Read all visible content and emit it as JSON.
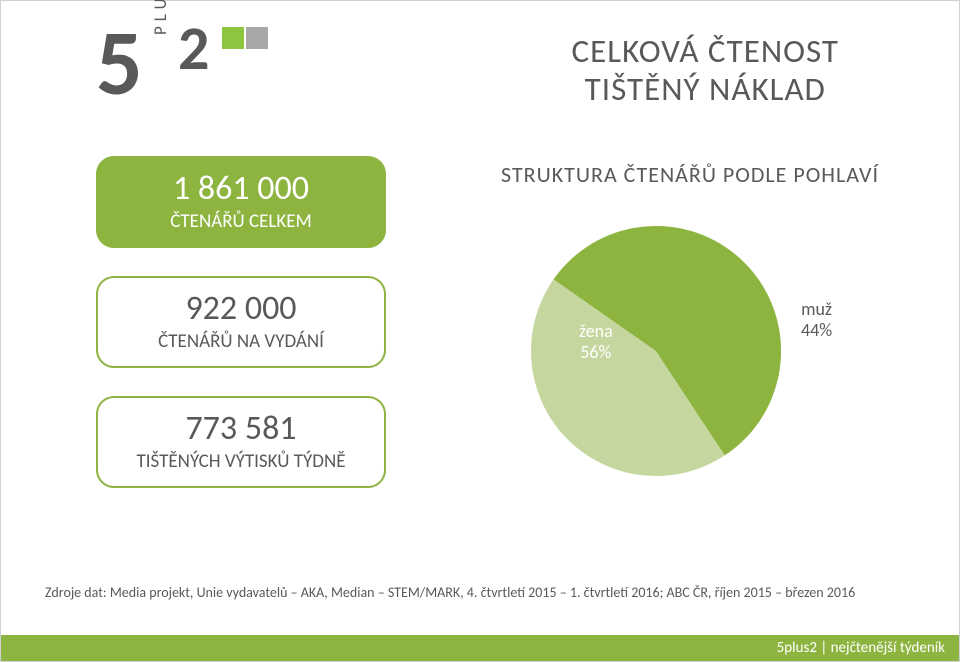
{
  "logo": {
    "big": "5",
    "plus": "PLUS",
    "small": "2",
    "colors": {
      "text": "#595959",
      "square1": "#8cc63f",
      "square2": "#a8a8a8"
    }
  },
  "title": {
    "line1": "CELKOVÁ ČTENOST",
    "line2": "TIŠTĚNÝ NÁKLAD",
    "fontsize": 33,
    "color": "#595959"
  },
  "stats": {
    "pill_border": "#8eb440",
    "pill_fill": "#8eb440",
    "items": [
      {
        "value": "1 861 000",
        "label": "ČTENÁŘŮ CELKEM",
        "filled": true
      },
      {
        "value": "922 000",
        "label": "ČTENÁŘŮ NA VYDÁNÍ",
        "filled": false
      },
      {
        "value": "773 581",
        "label": "TIŠTĚNÝCH VÝTISKŮ TÝDNĚ",
        "filled": false
      }
    ],
    "value_fontsize": 34,
    "label_fontsize": 19
  },
  "chart": {
    "title": "STRUKTURA ČTENÁŘŮ PODLE POHLAVÍ",
    "title_fontsize": 22,
    "type": "pie",
    "slices": [
      {
        "key": "zena",
        "name": "žena",
        "percent_label": "56%",
        "value": 56,
        "color": "#8eb440",
        "label_color": "#ffffff"
      },
      {
        "key": "muz",
        "name": "muž",
        "percent_label": "44%",
        "value": 44,
        "color": "#c5d79e",
        "label_color": "#595959"
      }
    ],
    "background_color": "#ffffff",
    "start_angle_deg": 305
  },
  "source": "Zdroje dat: Media projekt, Unie vydavatelů – AKA, Median – STEM/MARK, 4. čtvrtletí 2015 – 1. čtvrtletí 2016; ABC ČR, říjen 2015 – březen 2016",
  "footer": "5plus2 | nejčtenější týdeník",
  "palette": {
    "accent": "#8eb440",
    "accent_light": "#c5d79e",
    "text": "#595959",
    "white": "#ffffff"
  }
}
